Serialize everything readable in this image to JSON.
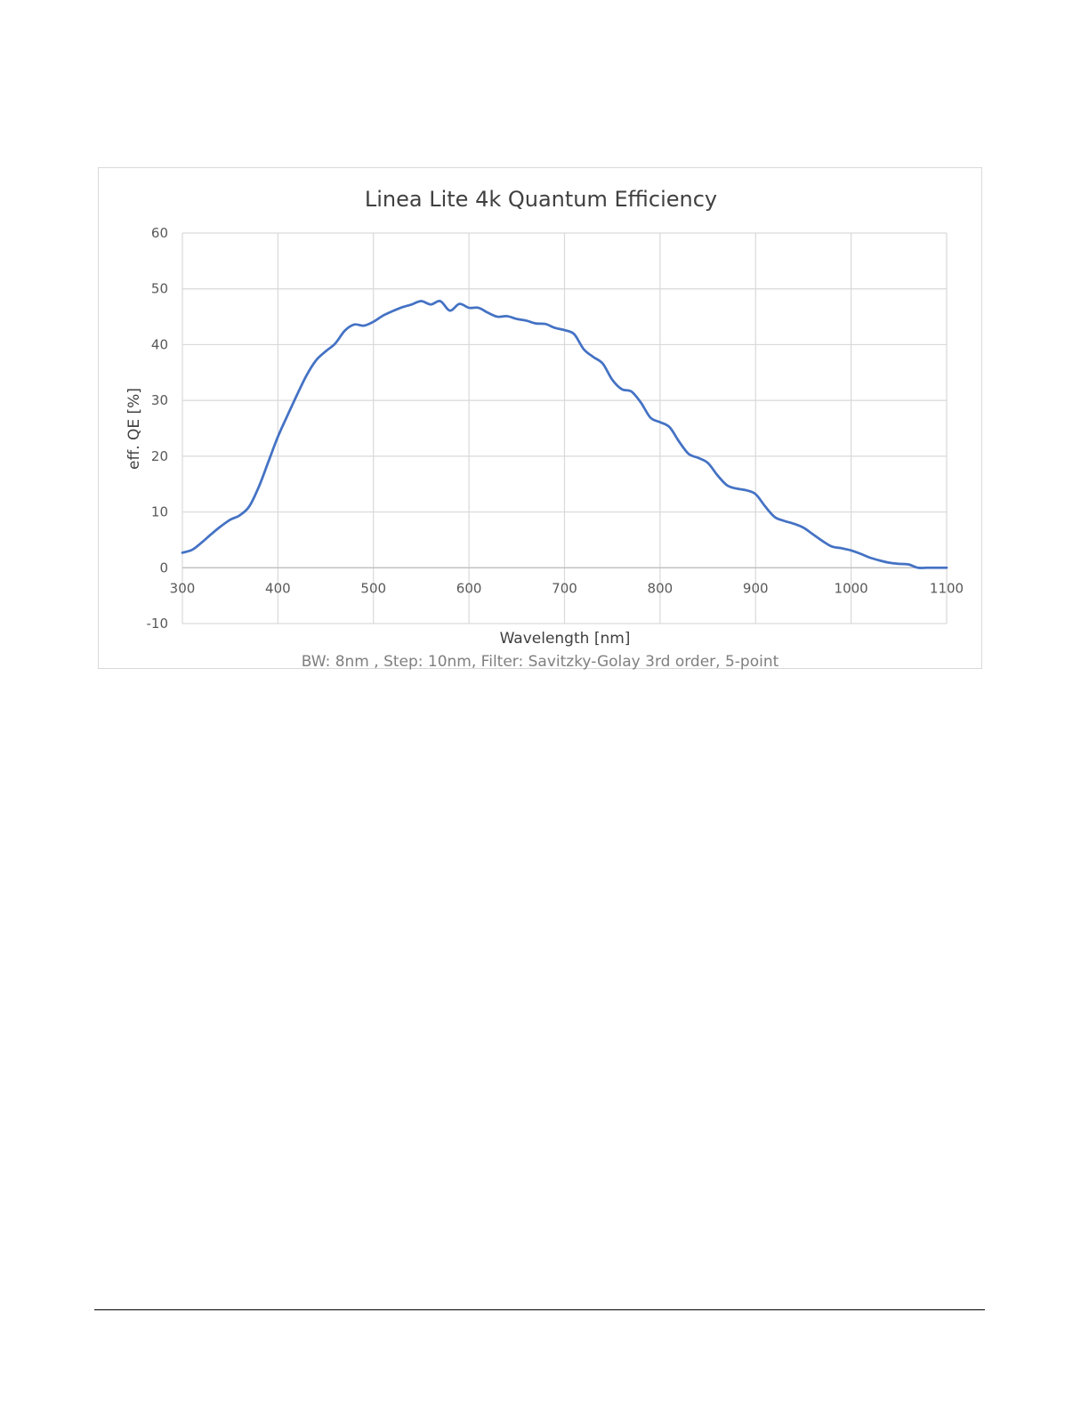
{
  "chart_data": {
    "type": "line",
    "title": "Linea Lite 4k Quantum Efficiency",
    "xlabel": "Wavelength [nm]",
    "ylabel": "eff. QE [%]",
    "note": "BW: 8nm , Step: 10nm, Filter: Savitzky-Golay 3rd order, 5-point",
    "xlim": [
      300,
      1100
    ],
    "ylim": [
      -10,
      60
    ],
    "xticks": [
      "300",
      "400",
      "500",
      "600",
      "700",
      "800",
      "900",
      "1000",
      "1100"
    ],
    "yticks": [
      "-10",
      "0",
      "10",
      "20",
      "30",
      "40",
      "50",
      "60"
    ],
    "grid": true,
    "legend": "none",
    "line_color": "#4472c4",
    "series": [
      {
        "x": [
          300,
          310,
          320,
          330,
          340,
          350,
          360,
          370,
          380,
          390,
          400,
          410,
          420,
          430,
          440,
          450,
          460,
          470,
          480,
          490,
          500,
          510,
          520,
          530,
          540,
          550,
          560,
          570,
          580,
          590,
          600,
          610,
          620,
          630,
          640,
          650,
          660,
          670,
          680,
          690,
          700,
          710,
          720,
          730,
          740,
          750,
          760,
          770,
          780,
          790,
          800,
          810,
          820,
          830,
          840,
          850,
          860,
          870,
          880,
          890,
          900,
          910,
          920,
          930,
          940,
          950,
          960,
          970,
          980,
          990,
          1000,
          1010,
          1020,
          1030,
          1040,
          1050,
          1060,
          1070,
          1080,
          1090,
          1100
        ],
        "values": [
          2.7,
          3.2,
          4.5,
          6.0,
          7.4,
          8.6,
          9.4,
          11.0,
          14.5,
          19.0,
          23.5,
          27.3,
          31.0,
          34.5,
          37.2,
          38.8,
          40.2,
          42.5,
          43.6,
          43.4,
          44.1,
          45.2,
          46.0,
          46.7,
          47.2,
          47.8,
          47.2,
          47.8,
          46.1,
          47.3,
          46.6,
          46.6,
          45.7,
          45.0,
          45.1,
          44.6,
          44.3,
          43.8,
          43.7,
          43.0,
          42.6,
          41.9,
          39.2,
          37.8,
          36.6,
          33.7,
          32.0,
          31.6,
          29.6,
          26.9,
          26.1,
          25.2,
          22.6,
          20.4,
          19.7,
          18.8,
          16.6,
          14.8,
          14.2,
          13.9,
          13.2,
          11.0,
          9.1,
          8.4,
          7.9,
          7.2,
          6.0,
          4.8,
          3.8,
          3.5,
          3.1,
          2.5,
          1.8,
          1.3,
          0.9,
          0.7,
          0.6,
          0.0,
          0.0,
          0.0,
          0.0
        ]
      }
    ]
  }
}
